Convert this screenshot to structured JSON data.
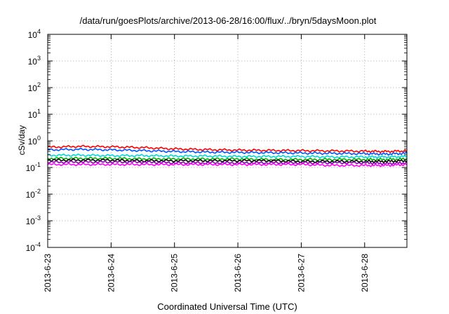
{
  "chart_data": {
    "type": "line",
    "title": "/data/run/goesPlots/archive/2013-06-28/16:00/flux/../bryn/5daysMoon.plot",
    "xlabel": "Coordinated Universal Time (UTC)",
    "ylabel": "cSv/day",
    "yscale": "log",
    "ylim": [
      0.0001,
      10000
    ],
    "y_ticks": [
      {
        "exp": "4",
        "value": 10000
      },
      {
        "exp": "3",
        "value": 1000
      },
      {
        "exp": "2",
        "value": 100
      },
      {
        "exp": "1",
        "value": 10
      },
      {
        "exp": "0",
        "value": 1
      },
      {
        "exp": "-1",
        "value": 0.1
      },
      {
        "exp": "-2",
        "value": 0.01
      },
      {
        "exp": "-3",
        "value": 0.001
      },
      {
        "exp": "-4",
        "value": 0.0001
      }
    ],
    "y_tick_base": "10",
    "xlim": [
      "2013-06-23T00:00",
      "2013-06-28T16:00"
    ],
    "x_ticks": [
      "2013-6-23",
      "2013-6-24",
      "2013-6-25",
      "2013-6-26",
      "2013-6-27",
      "2013-6-28"
    ],
    "grid": true,
    "series": [
      {
        "color": "#ff0000",
        "x": [
          "2013-06-23T00:00",
          "2013-06-23T12:00",
          "2013-06-24T00:00",
          "2013-06-24T12:00",
          "2013-06-25T00:00",
          "2013-06-25T12:00",
          "2013-06-26T00:00",
          "2013-06-26T12:00",
          "2013-06-27T00:00",
          "2013-06-27T12:00",
          "2013-06-28T00:00",
          "2013-06-28T08:00",
          "2013-06-28T16:00"
        ],
        "y": [
          0.58,
          0.62,
          0.6,
          0.56,
          0.5,
          0.47,
          0.45,
          0.44,
          0.43,
          0.42,
          0.41,
          0.4,
          0.42
        ]
      },
      {
        "color": "#0055ff",
        "x": [
          "2013-06-23T00:00",
          "2013-06-23T12:00",
          "2013-06-24T00:00",
          "2013-06-24T12:00",
          "2013-06-25T00:00",
          "2013-06-25T12:00",
          "2013-06-26T00:00",
          "2013-06-26T12:00",
          "2013-06-27T00:00",
          "2013-06-27T12:00",
          "2013-06-28T00:00",
          "2013-06-28T08:00",
          "2013-06-28T16:00"
        ],
        "y": [
          0.46,
          0.48,
          0.46,
          0.43,
          0.4,
          0.38,
          0.37,
          0.36,
          0.35,
          0.34,
          0.33,
          0.32,
          0.34
        ]
      },
      {
        "color": "#00d8d8",
        "x": [
          "2013-06-23T00:00",
          "2013-06-23T12:00",
          "2013-06-24T00:00",
          "2013-06-24T12:00",
          "2013-06-25T00:00",
          "2013-06-25T12:00",
          "2013-06-26T00:00",
          "2013-06-26T12:00",
          "2013-06-27T00:00",
          "2013-06-27T12:00",
          "2013-06-28T00:00",
          "2013-06-28T08:00",
          "2013-06-28T16:00"
        ],
        "y": [
          0.29,
          0.29,
          0.28,
          0.28,
          0.27,
          0.27,
          0.26,
          0.26,
          0.26,
          0.25,
          0.25,
          0.25,
          0.26
        ]
      },
      {
        "color": "#00b000",
        "x": [
          "2013-06-23T00:00",
          "2013-06-23T12:00",
          "2013-06-24T00:00",
          "2013-06-24T12:00",
          "2013-06-25T00:00",
          "2013-06-25T12:00",
          "2013-06-26T00:00",
          "2013-06-26T12:00",
          "2013-06-27T00:00",
          "2013-06-27T12:00",
          "2013-06-28T00:00",
          "2013-06-28T08:00",
          "2013-06-28T16:00"
        ],
        "y": [
          0.22,
          0.22,
          0.22,
          0.21,
          0.21,
          0.21,
          0.21,
          0.2,
          0.2,
          0.2,
          0.2,
          0.2,
          0.21
        ]
      },
      {
        "color": "#000000",
        "x": [
          "2013-06-23T00:00",
          "2013-06-23T12:00",
          "2013-06-24T00:00",
          "2013-06-24T12:00",
          "2013-06-25T00:00",
          "2013-06-25T12:00",
          "2013-06-26T00:00",
          "2013-06-26T12:00",
          "2013-06-27T00:00",
          "2013-06-27T12:00",
          "2013-06-28T00:00",
          "2013-06-28T08:00",
          "2013-06-28T16:00"
        ],
        "y": [
          0.19,
          0.19,
          0.19,
          0.18,
          0.18,
          0.18,
          0.18,
          0.18,
          0.17,
          0.17,
          0.17,
          0.17,
          0.18
        ]
      },
      {
        "color": "#8800aa",
        "x": [
          "2013-06-23T00:00",
          "2013-06-23T12:00",
          "2013-06-24T00:00",
          "2013-06-24T12:00",
          "2013-06-25T00:00",
          "2013-06-25T12:00",
          "2013-06-26T00:00",
          "2013-06-26T12:00",
          "2013-06-27T00:00",
          "2013-06-27T12:00",
          "2013-06-28T00:00",
          "2013-06-28T08:00",
          "2013-06-28T16:00"
        ],
        "y": [
          0.16,
          0.16,
          0.16,
          0.16,
          0.15,
          0.15,
          0.15,
          0.15,
          0.15,
          0.15,
          0.15,
          0.14,
          0.15
        ]
      },
      {
        "color": "#ff00ff",
        "x": [
          "2013-06-23T00:00",
          "2013-06-23T12:00",
          "2013-06-24T00:00",
          "2013-06-24T12:00",
          "2013-06-25T00:00",
          "2013-06-25T12:00",
          "2013-06-26T00:00",
          "2013-06-26T12:00",
          "2013-06-27T00:00",
          "2013-06-27T12:00",
          "2013-06-28T00:00",
          "2013-06-28T08:00",
          "2013-06-28T16:00"
        ],
        "y": [
          0.13,
          0.13,
          0.13,
          0.13,
          0.13,
          0.13,
          0.13,
          0.13,
          0.13,
          0.12,
          0.12,
          0.12,
          0.13
        ]
      }
    ]
  }
}
